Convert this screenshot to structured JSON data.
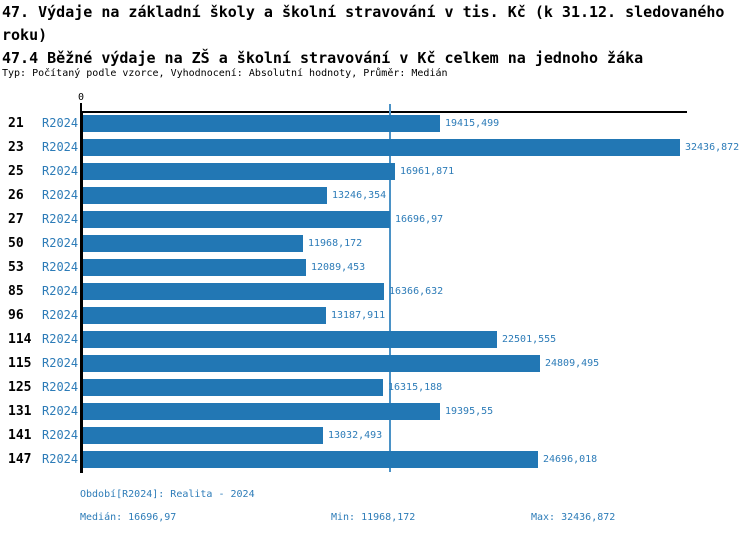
{
  "title_line1": "47. Výdaje na základní školy a školní stravování v tis. Kč (k 31.12. sledovaného roku)",
  "title_line2": "47.4 Běžné výdaje na ZŠ a školní stravování v Kč celkem na jednoho žáka",
  "subtitle": "Typ: Počítaný podle vzorce, Vyhodnocení: Absolutní hodnoty, Průměr: Medián",
  "chart_data": {
    "type": "bar",
    "orientation": "horizontal",
    "axis_origin_label": "0",
    "series_label": "R2024",
    "categories": [
      "21",
      "23",
      "25",
      "26",
      "27",
      "50",
      "53",
      "85",
      "96",
      "114",
      "115",
      "125",
      "131",
      "141",
      "147"
    ],
    "values": [
      19415.499,
      32436.872,
      16961.871,
      13246.354,
      16696.97,
      11968.172,
      12089.453,
      16366.632,
      13187.911,
      22501.555,
      24809.495,
      16315.188,
      19395.55,
      13032.493,
      24696.018
    ],
    "value_labels": [
      "19415,499",
      "32436,872",
      "16961,871",
      "13246,354",
      "16696,97",
      "11968,172",
      "12089,453",
      "16366,632",
      "13187,911",
      "22501,555",
      "24809,495",
      "16315,188",
      "19395,55",
      "13032,493",
      "24696,018"
    ],
    "xlim": [
      0,
      32436.872
    ],
    "median": 16696.97,
    "min": 11968.172,
    "max": 32436.872,
    "grid": false,
    "legend": false,
    "bar_color": "#2277b4",
    "median_line_color": "#4b92c6",
    "label_color": "#2d7cb8"
  },
  "footer": {
    "period": "Období[R2024]: Realita - 2024",
    "median": "Medián: 16696,97",
    "min": "Min: 11968,172",
    "max": "Max: 32436,872"
  }
}
